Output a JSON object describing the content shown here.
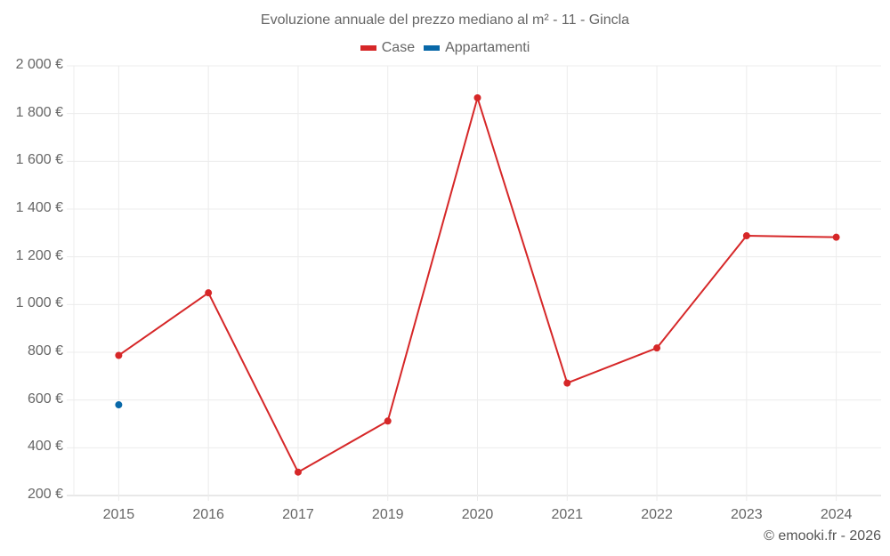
{
  "chart_data": {
    "type": "line",
    "title": "Evoluzione annuale del prezzo mediano al m² - 11 - Gincla",
    "categories": [
      "2015",
      "2016",
      "2017",
      "2019",
      "2020",
      "2021",
      "2022",
      "2023",
      "2024"
    ],
    "series": [
      {
        "name": "Case",
        "color": "#d62728",
        "values": [
          787,
          1049,
          298,
          512,
          1866,
          671,
          818,
          1288,
          1282
        ]
      },
      {
        "name": "Appartamenti",
        "color": "#0868a8",
        "values": [
          580,
          null,
          null,
          null,
          null,
          null,
          null,
          null,
          null
        ]
      }
    ],
    "xlabel": "",
    "ylabel": "",
    "ylim": [
      200,
      2000
    ],
    "yticks": [
      "200 €",
      "400 €",
      "600 €",
      "800 €",
      "1 000 €",
      "1 200 €",
      "1 400 €",
      "1 600 €",
      "1 800 €",
      "2 000 €"
    ],
    "grid": true,
    "legend_position": "top"
  },
  "title": "Evoluzione annuale del prezzo mediano al m² - 11 - Gincla",
  "legend": [
    {
      "label": "Case",
      "color": "#d62728"
    },
    {
      "label": "Appartamenti",
      "color": "#0868a8"
    }
  ],
  "credit": "© emooki.fr - 2026"
}
